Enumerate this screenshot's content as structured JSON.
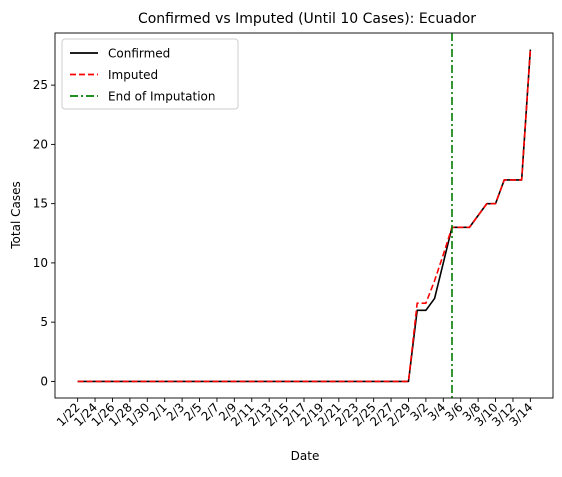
{
  "chart_data": {
    "type": "line",
    "title": "Confirmed vs Imputed (Until 10 Cases): Ecuador",
    "xlabel": "Date",
    "ylabel": "Total Cases",
    "ylim": [
      -1.4,
      29.4
    ],
    "yticks": [
      0,
      5,
      10,
      15,
      20,
      25
    ],
    "dates": [
      "1/22",
      "1/23",
      "1/24",
      "1/25",
      "1/26",
      "1/27",
      "1/28",
      "1/29",
      "1/30",
      "1/31",
      "2/1",
      "2/2",
      "2/3",
      "2/4",
      "2/5",
      "2/6",
      "2/7",
      "2/8",
      "2/9",
      "2/10",
      "2/11",
      "2/12",
      "2/13",
      "2/14",
      "2/15",
      "2/16",
      "2/17",
      "2/18",
      "2/19",
      "2/20",
      "2/21",
      "2/22",
      "2/23",
      "2/24",
      "2/25",
      "2/26",
      "2/27",
      "2/28",
      "2/29",
      "3/1",
      "3/2",
      "3/3",
      "3/4",
      "3/5",
      "3/6",
      "3/7",
      "3/8",
      "3/9",
      "3/10",
      "3/11",
      "3/12",
      "3/13",
      "3/14"
    ],
    "xtick_labels": [
      "1/22",
      "1/24",
      "1/26",
      "1/28",
      "1/30",
      "2/1",
      "2/3",
      "2/5",
      "2/7",
      "2/9",
      "2/11",
      "2/13",
      "2/15",
      "2/17",
      "2/19",
      "2/21",
      "2/23",
      "2/25",
      "2/27",
      "2/29",
      "3/2",
      "3/4",
      "3/6",
      "3/8",
      "3/10",
      "3/12",
      "3/14"
    ],
    "series": [
      {
        "name": "Confirmed",
        "color": "#000000",
        "style": "solid",
        "values": [
          0,
          0,
          0,
          0,
          0,
          0,
          0,
          0,
          0,
          0,
          0,
          0,
          0,
          0,
          0,
          0,
          0,
          0,
          0,
          0,
          0,
          0,
          0,
          0,
          0,
          0,
          0,
          0,
          0,
          0,
          0,
          0,
          0,
          0,
          0,
          0,
          0,
          0,
          0,
          6,
          6,
          7,
          10,
          13,
          13,
          13,
          14,
          15,
          15,
          17,
          17,
          17,
          28
        ]
      },
      {
        "name": "Imputed",
        "color": "#ff0000",
        "style": "dashed",
        "values": [
          0,
          0,
          0,
          0,
          0,
          0,
          0,
          0,
          0,
          0,
          0,
          0,
          0,
          0,
          0,
          0,
          0,
          0,
          0,
          0,
          0,
          0,
          0,
          0,
          0,
          0,
          0,
          0,
          0,
          0,
          0,
          0,
          0,
          0,
          0,
          0,
          0,
          0,
          0,
          6.6,
          6.6,
          8.5,
          10.7,
          13,
          13,
          13,
          14,
          15,
          15,
          17,
          17,
          17,
          28
        ]
      }
    ],
    "vline": {
      "name": "End of Imputation",
      "date": "3/5",
      "color": "#008000",
      "style": "dashdot"
    },
    "legend": {
      "location": "top-left",
      "entries": [
        "Confirmed",
        "Imputed",
        "End of Imputation"
      ]
    },
    "grid": false
  }
}
